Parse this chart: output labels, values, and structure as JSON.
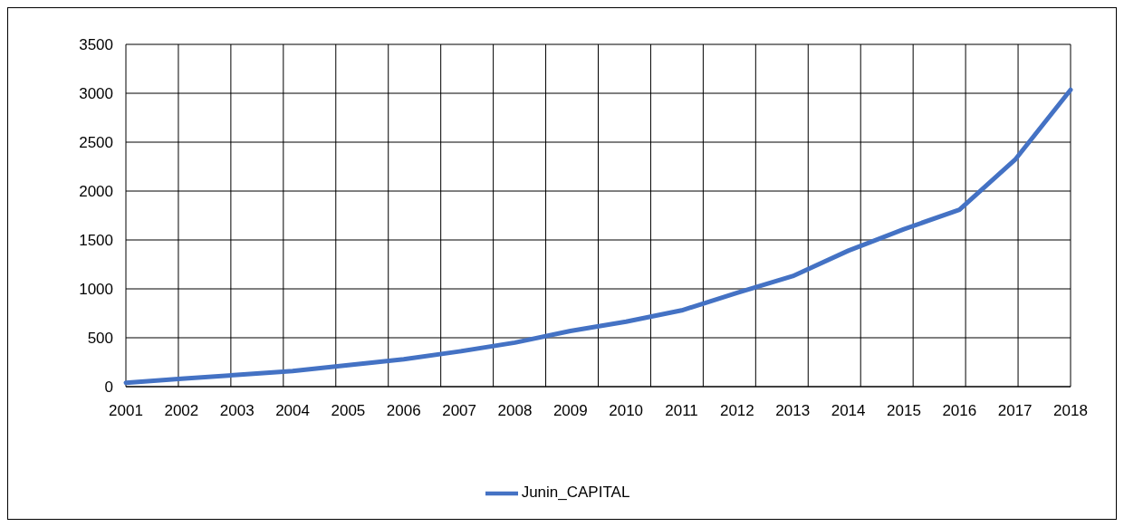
{
  "chart_data": {
    "type": "line",
    "categories": [
      "2001",
      "2002",
      "2003",
      "2004",
      "2005",
      "2006",
      "2007",
      "2008",
      "2009",
      "2010",
      "2011",
      "2012",
      "2013",
      "2014",
      "2015",
      "2016",
      "2017",
      "2018"
    ],
    "series": [
      {
        "name": "Junin_CAPITAL",
        "color": "#4472c4",
        "values": [
          40,
          80,
          120,
          160,
          220,
          280,
          360,
          450,
          570,
          665,
          780,
          960,
          1130,
          1390,
          1610,
          1810,
          2320,
          3035
        ]
      }
    ],
    "ylim": [
      0,
      3500
    ],
    "yticks": [
      0,
      500,
      1000,
      1500,
      2000,
      2500,
      3000,
      3500
    ],
    "grid": true,
    "legend": "bottom",
    "marker": "none",
    "line_style": "solid"
  }
}
